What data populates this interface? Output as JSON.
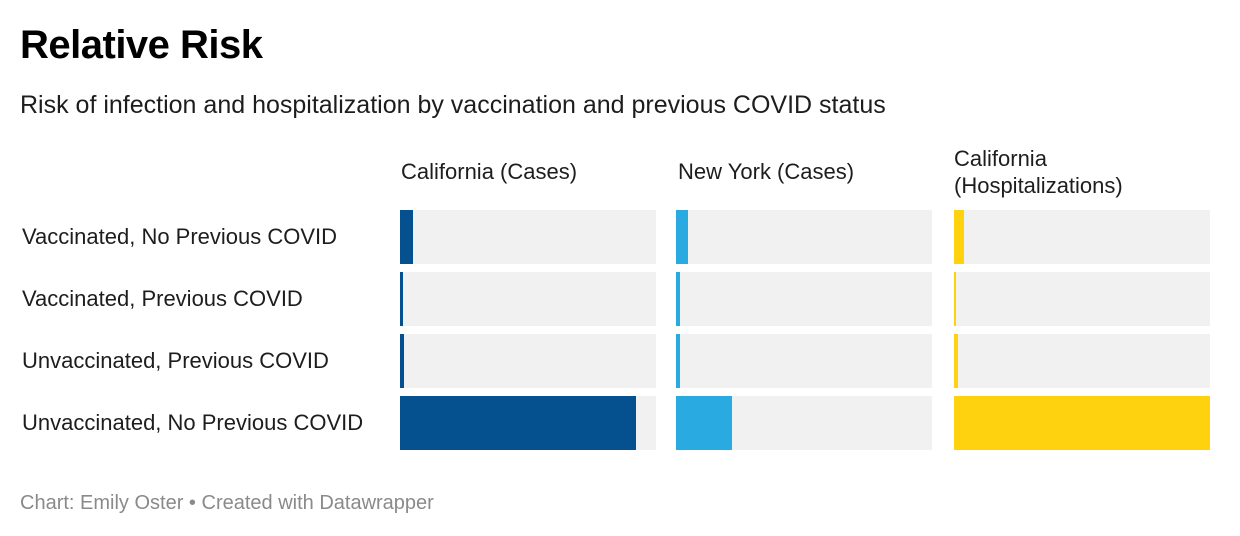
{
  "title": "Relative Risk",
  "subtitle": "Risk of infection and hospitalization by vaccination and previous COVID status",
  "footer": {
    "source": "Chart: Emily Oster",
    "separator": "•",
    "credit": "Created with Datawrapper"
  },
  "chart_data": {
    "type": "bar",
    "categories": [
      "Vaccinated, No Previous COVID",
      "Vaccinated, Previous COVID",
      "Unvaccinated, Previous COVID",
      "Unvaccinated, No Previous COVID"
    ],
    "series": [
      {
        "name": "California (Cases)",
        "color": "#05508e",
        "values": [
          0.05,
          0.01,
          0.015,
          0.92
        ]
      },
      {
        "name": "New York (Cases)",
        "color": "#29abe2",
        "values": [
          0.045,
          0.015,
          0.015,
          0.22
        ]
      },
      {
        "name": "California\n(Hospitalizations)",
        "color": "#ffd20f",
        "values": [
          0.04,
          0.008,
          0.015,
          1.0
        ]
      }
    ],
    "xlim": [
      0,
      1
    ],
    "grid": false,
    "legend": "none"
  }
}
